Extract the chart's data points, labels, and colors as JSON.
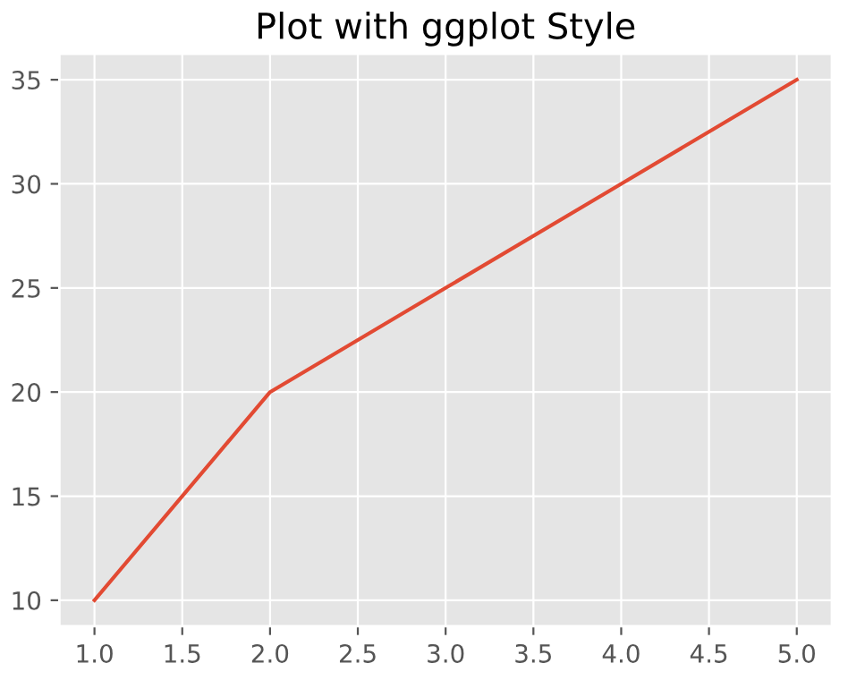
{
  "chart_data": {
    "type": "line",
    "title": "Plot with ggplot Style",
    "x": [
      1,
      2,
      3,
      4,
      5
    ],
    "series": [
      {
        "color": "#e24a33",
        "values": [
          10,
          20,
          25,
          30,
          35
        ]
      }
    ],
    "xlim": [
      0.8,
      5.2
    ],
    "ylim": [
      8.75,
      36.25
    ],
    "xticks": [
      {
        "value": 1,
        "label": "1.0"
      },
      {
        "value": 1.5,
        "label": "1.5"
      },
      {
        "value": 2,
        "label": "2.0"
      },
      {
        "value": 2.5,
        "label": "2.5"
      },
      {
        "value": 3,
        "label": "3.0"
      },
      {
        "value": 3.5,
        "label": "3.5"
      },
      {
        "value": 4,
        "label": "4.0"
      },
      {
        "value": 4.5,
        "label": "4.5"
      },
      {
        "value": 5,
        "label": "5.0"
      }
    ],
    "yticks": [
      10,
      15,
      20,
      25,
      30,
      35
    ],
    "grid": true
  }
}
